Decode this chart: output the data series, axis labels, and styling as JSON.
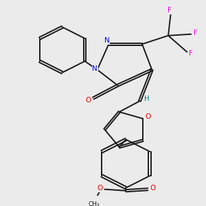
{
  "background_color": "#ebebeb",
  "bond_color": "#1a1a1a",
  "atom_colors": {
    "N": "#0000ee",
    "O": "#ee0000",
    "F": "#dd00dd",
    "H": "#008080",
    "C": "#1a1a1a"
  },
  "lw": 1.4,
  "dbo": 0.055
}
